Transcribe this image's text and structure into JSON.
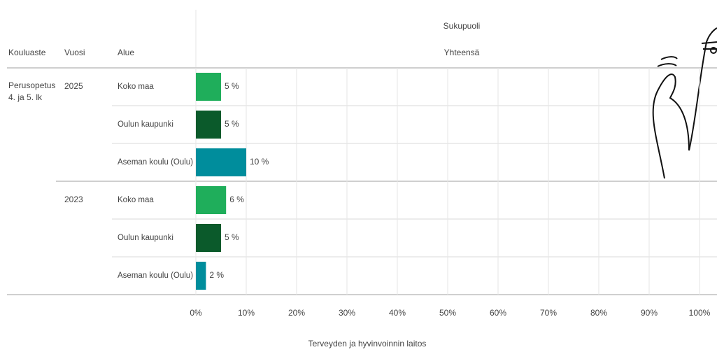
{
  "chart_data": {
    "type": "bar",
    "orientation": "horizontal",
    "column_headers": [
      "Kouluaste",
      "Vuosi",
      "Alue"
    ],
    "group_header": "Sukupuoli",
    "kouluaste": [
      "Perusopetus",
      "4. ja 5. lk"
    ],
    "years": [
      "2025",
      null,
      null,
      "2023",
      null,
      null
    ],
    "categories": [
      "Koko maa",
      "Oulun kaupunki",
      "Aseman koulu (Oulu)",
      "Koko maa",
      "Oulun kaupunki",
      "Aseman koulu (Oulu)"
    ],
    "series": [
      {
        "name": "Yhteensä",
        "colors": [
          "#1fae5b",
          "#0b5a2b",
          "#008d9c",
          "#1fae5b",
          "#0b5a2b",
          "#008d9c"
        ],
        "values": [
          5,
          5,
          10,
          6,
          5,
          2
        ],
        "value_labels": [
          "5 %",
          "5 %",
          "10 %",
          "6 %",
          "5 %",
          "2 %"
        ]
      }
    ],
    "xlim": [
      0,
      100
    ],
    "xticks": [
      {
        "value": 0,
        "label": "0%"
      },
      {
        "value": 10,
        "label": "10%"
      },
      {
        "value": 20,
        "label": "20%"
      },
      {
        "value": 30,
        "label": "30%"
      },
      {
        "value": 40,
        "label": "40%"
      },
      {
        "value": 50,
        "label": "50%"
      },
      {
        "value": 60,
        "label": "60%"
      },
      {
        "value": 70,
        "label": "70%"
      },
      {
        "value": 80,
        "label": "80%"
      },
      {
        "value": 90,
        "label": "90%"
      },
      {
        "value": 100,
        "label": "100%"
      }
    ],
    "grid": true,
    "source": "Terveyden ja hyvinvoinnin laitos"
  }
}
